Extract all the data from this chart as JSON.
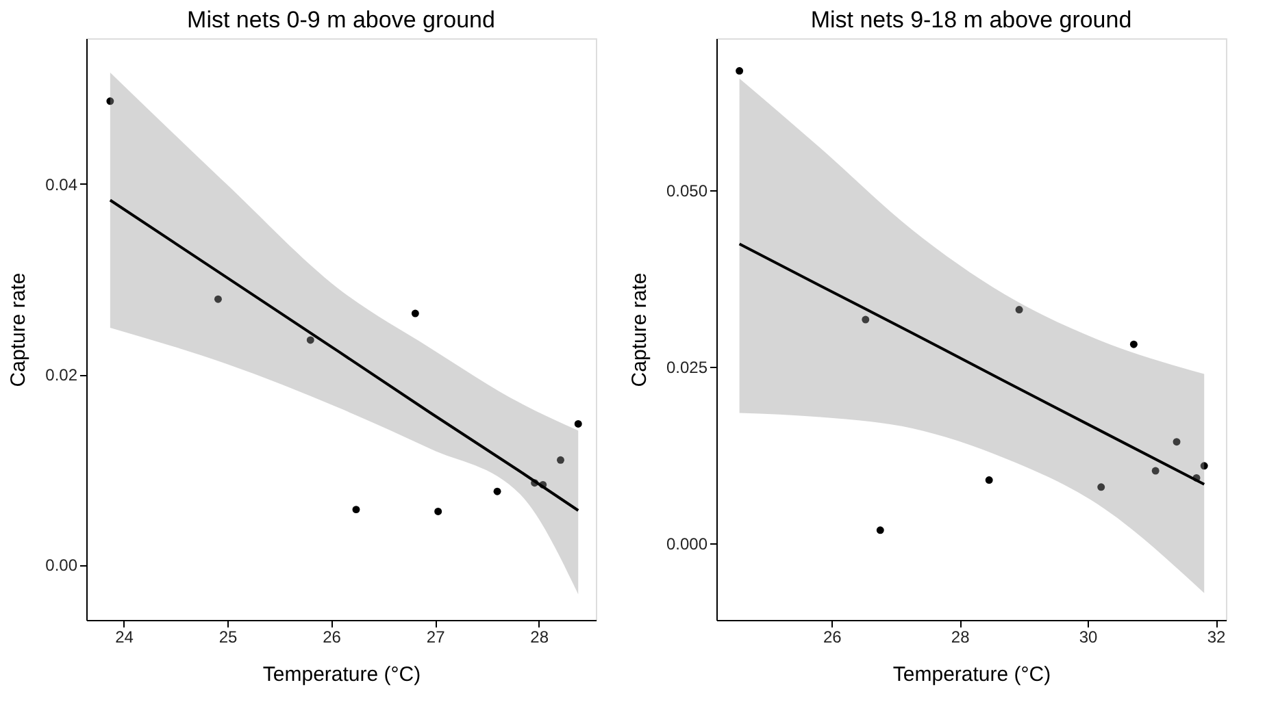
{
  "chart_data": [
    {
      "type": "scatter",
      "title": "Mist nets 0-9 m above ground",
      "xlabel": "Temperature (°C)",
      "ylabel": "Capture rate",
      "grid": false,
      "xlim": [
        23.64,
        28.55
      ],
      "ylim": [
        -0.0058,
        0.0553
      ],
      "xticks": [
        24,
        25,
        26,
        27,
        28
      ],
      "yticks": [
        {
          "value": 0,
          "label": "0.00"
        },
        {
          "value": 0.02,
          "label": "0.02"
        },
        {
          "value": 0.04,
          "label": "0.04"
        }
      ],
      "series": [
        {
          "color": "#000000",
          "marker": "circle",
          "x": [
            23.87,
            24.91,
            25.8,
            26.24,
            26.81,
            27.03,
            27.6,
            27.96,
            28.04,
            28.21,
            28.38
          ],
          "values": [
            0.0487,
            0.0279,
            0.0236,
            0.0058,
            0.0264,
            0.0056,
            0.0077,
            0.0086,
            0.0084,
            0.011,
            0.0148
          ]
        },
        {
          "type": "line",
          "color": "#000000",
          "marker": "none",
          "line_style": "solid",
          "x": [
            23.87,
            24.99,
            26.07,
            26.95,
            27.82,
            28.38
          ],
          "values": [
            0.0383,
            0.0302,
            0.0224,
            0.016,
            0.0098,
            0.0057
          ],
          "lower": [
            0.0249,
            0.0211,
            0.0165,
            0.0122,
            0.0074,
            -0.0031
          ],
          "upper": [
            0.0517,
            0.04,
            0.029,
            0.0228,
            0.017,
            0.0141
          ]
        }
      ]
    },
    {
      "type": "scatter",
      "title": "Mist nets 9-18 m above ground",
      "xlabel": "Temperature (°C)",
      "ylabel": "Capture rate",
      "grid": false,
      "xlim": [
        24.2,
        32.16
      ],
      "ylim": [
        -0.0108,
        0.0715
      ],
      "xticks": [
        26,
        28,
        30,
        32
      ],
      "yticks": [
        {
          "value": 0,
          "label": "0.000"
        },
        {
          "value": 0.025,
          "label": "0.025"
        },
        {
          "value": 0.05,
          "label": "0.050"
        }
      ],
      "series": [
        {
          "color": "#000000",
          "marker": "circle",
          "x": [
            24.56,
            26.53,
            26.76,
            28.46,
            28.93,
            30.21,
            30.72,
            31.06,
            31.39,
            31.7,
            31.82
          ],
          "values": [
            0.0669,
            0.0317,
            0.0019,
            0.009,
            0.0331,
            0.008,
            0.0282,
            0.0103,
            0.0144,
            0.0093,
            0.011
          ]
        },
        {
          "type": "line",
          "color": "#000000",
          "marker": "none",
          "line_style": "solid",
          "x": [
            24.56,
            25.82,
            27.26,
            28.7,
            30.15,
            31.82
          ],
          "values": [
            0.0424,
            0.0365,
            0.0298,
            0.023,
            0.0162,
            0.0084
          ],
          "lower": [
            0.0185,
            0.0179,
            0.0163,
            0.0121,
            0.0056,
            -0.007
          ],
          "upper": [
            0.0658,
            0.056,
            0.0444,
            0.0353,
            0.0289,
            0.024
          ]
        }
      ]
    }
  ]
}
